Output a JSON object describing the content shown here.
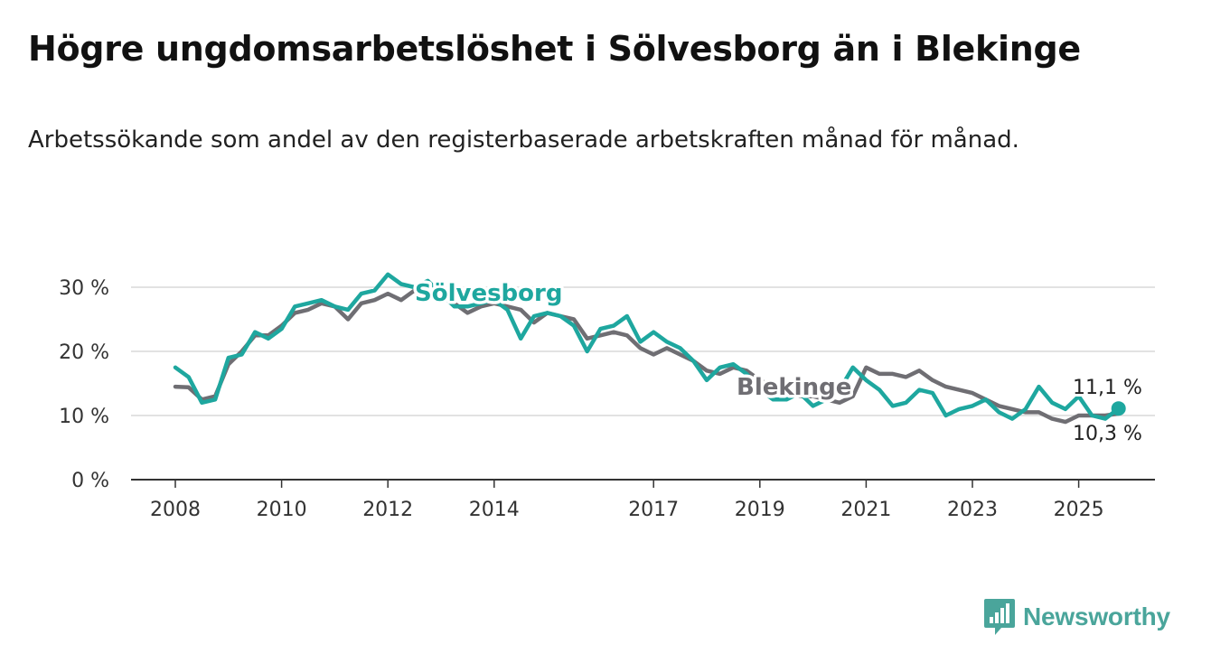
{
  "header": {
    "title": "Högre ungdomsarbetslöshet i Sölvesborg än i Blekinge",
    "subtitle": "Arbetssökande som andel av den registerbaserade arbetskraften månad för månad."
  },
  "brand": {
    "name": "Newsworthy",
    "color": "#4aa59b",
    "icon": "bar-chart-bubble-icon"
  },
  "chart_data": {
    "type": "line",
    "title": "Högre ungdomsarbetslöshet i Sölvesborg än i Blekinge",
    "subtitle": "Arbetssökande som andel av den registerbaserade arbetskraften månad för månad.",
    "xlabel": "",
    "ylabel": "",
    "xlim": [
      2008,
      2025.8
    ],
    "ylim": [
      0,
      30
    ],
    "grid": true,
    "legend": "inline labels",
    "x_ticks": [
      {
        "value": 2008,
        "label": "2008"
      },
      {
        "value": 2010,
        "label": "2010"
      },
      {
        "value": 2012,
        "label": "2012"
      },
      {
        "value": 2014,
        "label": "2014"
      },
      {
        "value": 2017,
        "label": "2017"
      },
      {
        "value": 2019,
        "label": "2019"
      },
      {
        "value": 2021,
        "label": "2021"
      },
      {
        "value": 2023,
        "label": "2023"
      },
      {
        "value": 2025,
        "label": "2025"
      }
    ],
    "y_ticks": [
      {
        "value": 0,
        "label": "0 %"
      },
      {
        "value": 10,
        "label": "10 %"
      },
      {
        "value": 20,
        "label": "20 %"
      },
      {
        "value": 30,
        "label": "30 %"
      }
    ],
    "series": [
      {
        "name": "Blekinge",
        "color": "#6f6e73",
        "end_label": "10,3 %",
        "points": [
          [
            2008.0,
            14.5
          ],
          [
            2008.25,
            14.4
          ],
          [
            2008.5,
            12.5
          ],
          [
            2008.75,
            13.0
          ],
          [
            2009.0,
            18.0
          ],
          [
            2009.25,
            20.0
          ],
          [
            2009.5,
            22.5
          ],
          [
            2009.75,
            22.5
          ],
          [
            2010.0,
            24.0
          ],
          [
            2010.25,
            26.0
          ],
          [
            2010.5,
            26.5
          ],
          [
            2010.75,
            27.5
          ],
          [
            2011.0,
            27.0
          ],
          [
            2011.25,
            25.0
          ],
          [
            2011.5,
            27.5
          ],
          [
            2011.75,
            28.0
          ],
          [
            2012.0,
            29.0
          ],
          [
            2012.25,
            28.0
          ],
          [
            2012.5,
            29.5
          ],
          [
            2012.75,
            30.0
          ],
          [
            2013.0,
            28.5
          ],
          [
            2013.25,
            27.5
          ],
          [
            2013.5,
            26.0
          ],
          [
            2013.75,
            27.0
          ],
          [
            2014.0,
            27.5
          ],
          [
            2014.25,
            27.0
          ],
          [
            2014.5,
            26.5
          ],
          [
            2014.75,
            24.5
          ],
          [
            2015.0,
            26.0
          ],
          [
            2015.25,
            25.5
          ],
          [
            2015.5,
            25.0
          ],
          [
            2015.75,
            22.0
          ],
          [
            2016.0,
            22.5
          ],
          [
            2016.25,
            23.0
          ],
          [
            2016.5,
            22.5
          ],
          [
            2016.75,
            20.5
          ],
          [
            2017.0,
            19.5
          ],
          [
            2017.25,
            20.5
          ],
          [
            2017.5,
            19.5
          ],
          [
            2017.75,
            18.5
          ],
          [
            2018.0,
            17.0
          ],
          [
            2018.25,
            16.5
          ],
          [
            2018.5,
            17.5
          ],
          [
            2018.75,
            17.0
          ],
          [
            2019.0,
            15.5
          ],
          [
            2019.25,
            14.5
          ],
          [
            2019.5,
            14.0
          ],
          [
            2019.75,
            13.0
          ],
          [
            2020.0,
            13.0
          ],
          [
            2020.25,
            12.5
          ],
          [
            2020.5,
            12.0
          ],
          [
            2020.75,
            13.0
          ],
          [
            2021.0,
            17.5
          ],
          [
            2021.25,
            16.5
          ],
          [
            2021.5,
            16.5
          ],
          [
            2021.75,
            16.0
          ],
          [
            2022.0,
            17.0
          ],
          [
            2022.25,
            15.5
          ],
          [
            2022.5,
            14.5
          ],
          [
            2022.75,
            14.0
          ],
          [
            2023.0,
            13.5
          ],
          [
            2023.25,
            12.5
          ],
          [
            2023.5,
            11.5
          ],
          [
            2023.75,
            11.0
          ],
          [
            2024.0,
            10.5
          ],
          [
            2024.25,
            10.5
          ],
          [
            2024.5,
            9.5
          ],
          [
            2024.75,
            9.0
          ],
          [
            2025.0,
            10.0
          ],
          [
            2025.25,
            10.0
          ],
          [
            2025.5,
            10.0
          ],
          [
            2025.75,
            10.3
          ]
        ]
      },
      {
        "name": "Sölvesborg",
        "color": "#1ea79f",
        "end_label": "11,1 %",
        "points": [
          [
            2008.0,
            17.5
          ],
          [
            2008.25,
            16.0
          ],
          [
            2008.5,
            12.0
          ],
          [
            2008.75,
            12.5
          ],
          [
            2009.0,
            19.0
          ],
          [
            2009.25,
            19.5
          ],
          [
            2009.5,
            23.0
          ],
          [
            2009.75,
            22.0
          ],
          [
            2010.0,
            23.5
          ],
          [
            2010.25,
            27.0
          ],
          [
            2010.5,
            27.5
          ],
          [
            2010.75,
            28.0
          ],
          [
            2011.0,
            27.0
          ],
          [
            2011.25,
            26.5
          ],
          [
            2011.5,
            29.0
          ],
          [
            2011.75,
            29.5
          ],
          [
            2012.0,
            32.0
          ],
          [
            2012.25,
            30.5
          ],
          [
            2012.5,
            30.0
          ],
          [
            2012.75,
            31.0
          ],
          [
            2013.0,
            29.0
          ],
          [
            2013.25,
            27.0
          ],
          [
            2013.5,
            27.0
          ],
          [
            2013.75,
            27.5
          ],
          [
            2014.0,
            28.0
          ],
          [
            2014.25,
            26.5
          ],
          [
            2014.5,
            22.0
          ],
          [
            2014.75,
            25.5
          ],
          [
            2015.0,
            26.0
          ],
          [
            2015.25,
            25.5
          ],
          [
            2015.5,
            24.0
          ],
          [
            2015.75,
            20.0
          ],
          [
            2016.0,
            23.5
          ],
          [
            2016.25,
            24.0
          ],
          [
            2016.5,
            25.5
          ],
          [
            2016.75,
            21.5
          ],
          [
            2017.0,
            23.0
          ],
          [
            2017.25,
            21.5
          ],
          [
            2017.5,
            20.5
          ],
          [
            2017.75,
            18.5
          ],
          [
            2018.0,
            15.5
          ],
          [
            2018.25,
            17.5
          ],
          [
            2018.5,
            18.0
          ],
          [
            2018.75,
            16.5
          ],
          [
            2019.0,
            14.0
          ],
          [
            2019.25,
            12.5
          ],
          [
            2019.5,
            12.5
          ],
          [
            2019.75,
            13.5
          ],
          [
            2020.0,
            11.5
          ],
          [
            2020.25,
            12.5
          ],
          [
            2020.5,
            14.0
          ],
          [
            2020.75,
            17.5
          ],
          [
            2021.0,
            15.5
          ],
          [
            2021.25,
            14.0
          ],
          [
            2021.5,
            11.5
          ],
          [
            2021.75,
            12.0
          ],
          [
            2022.0,
            14.0
          ],
          [
            2022.25,
            13.5
          ],
          [
            2022.5,
            10.0
          ],
          [
            2022.75,
            11.0
          ],
          [
            2023.0,
            11.5
          ],
          [
            2023.25,
            12.5
          ],
          [
            2023.5,
            10.5
          ],
          [
            2023.75,
            9.5
          ],
          [
            2024.0,
            11.0
          ],
          [
            2024.25,
            14.5
          ],
          [
            2024.5,
            12.0
          ],
          [
            2024.75,
            11.0
          ],
          [
            2025.0,
            13.0
          ],
          [
            2025.25,
            10.0
          ],
          [
            2025.5,
            9.5
          ],
          [
            2025.75,
            11.1
          ]
        ]
      }
    ]
  }
}
